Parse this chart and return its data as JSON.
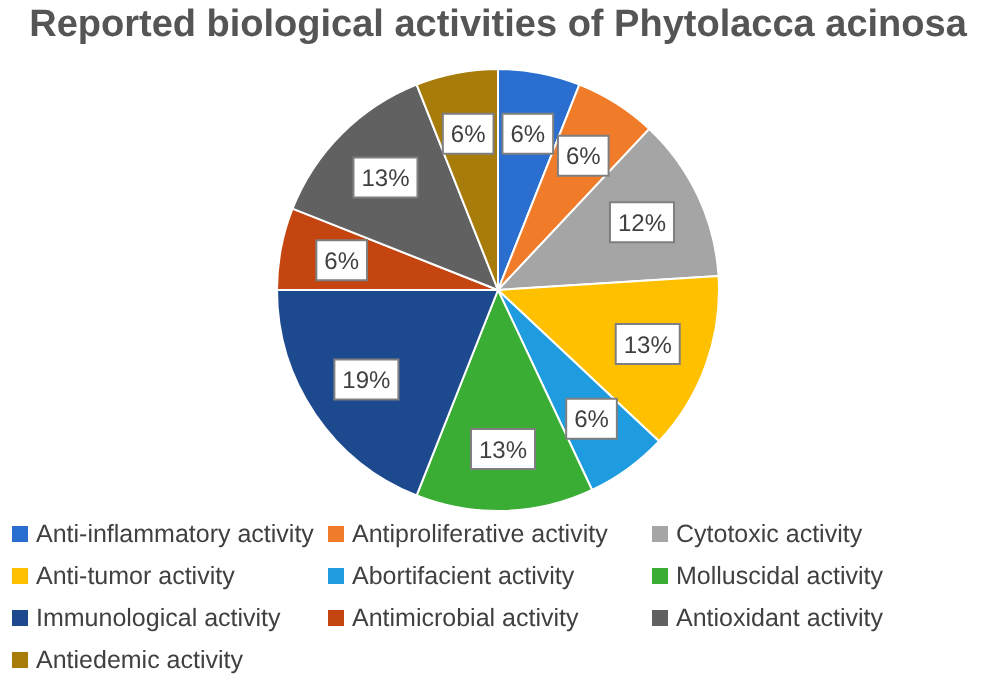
{
  "chart_data": {
    "type": "pie",
    "title": "Reported biological activities of Phytolacca acinosa",
    "categories": [
      "Anti-inflammatory activity",
      "Antiproliferative activity",
      "Cytotoxic activity",
      "Anti-tumor activity",
      "Abortifacient activity",
      "Molluscidal activity",
      "Immunological activity",
      "Antimicrobial activity",
      "Antioxidant activity",
      "Antiedemic activity"
    ],
    "values": [
      6,
      6,
      12,
      13,
      6,
      13,
      19,
      6,
      13,
      6
    ],
    "colors": [
      "#2a6fcf",
      "#f07c2a",
      "#a5a5a5",
      "#ffc000",
      "#1f9be0",
      "#3aad35",
      "#1d4a8f",
      "#c4450f",
      "#616161",
      "#a87c0a"
    ],
    "value_labels": [
      "6%",
      "6%",
      "12%",
      "13%",
      "6%",
      "13%",
      "19%",
      "6%",
      "13%",
      "6%"
    ],
    "legend": "bottom"
  }
}
